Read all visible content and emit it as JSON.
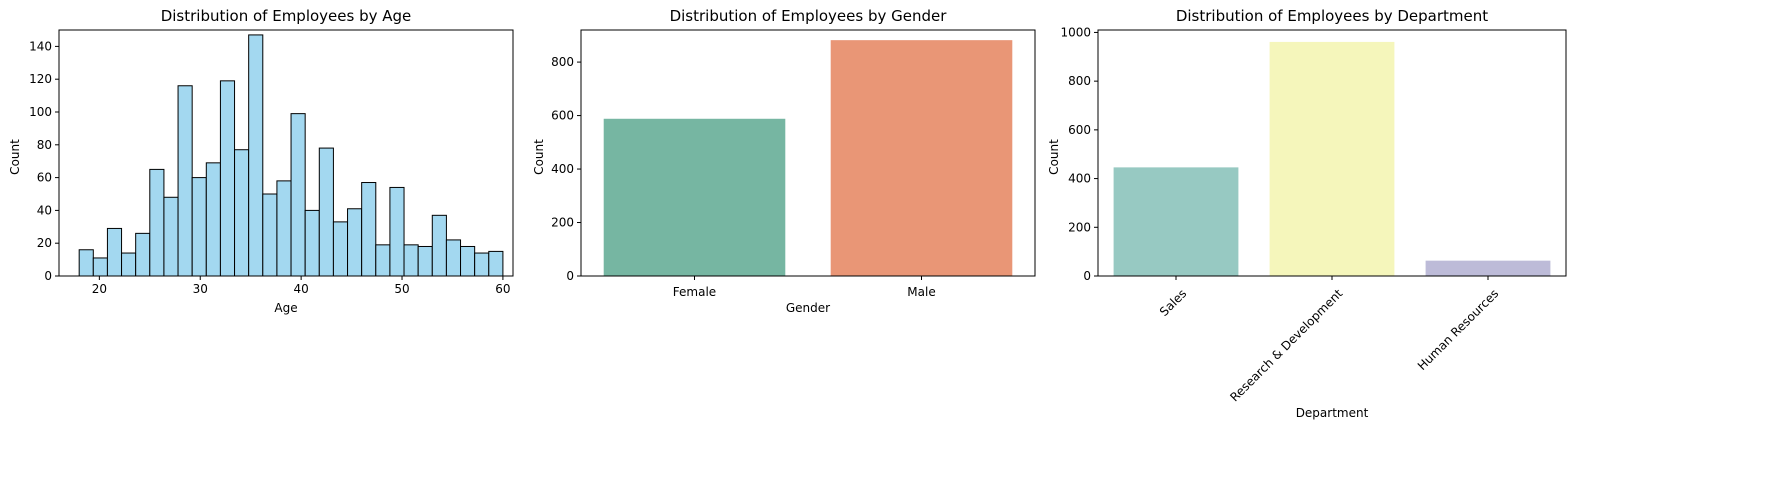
{
  "chart_data": [
    {
      "type": "bar",
      "subtype": "histogram",
      "title": "Distribution of Employees by Age",
      "xlabel": "Age",
      "ylabel": "Count",
      "xlim": [
        16,
        61
      ],
      "ylim": [
        0,
        150
      ],
      "xticks": [
        20,
        30,
        40,
        50,
        60
      ],
      "yticks": [
        0,
        20,
        40,
        60,
        80,
        100,
        120,
        140
      ],
      "bin_start": 18,
      "bin_width": 1.4,
      "values": [
        16,
        11,
        29,
        14,
        26,
        65,
        48,
        116,
        60,
        69,
        119,
        77,
        147,
        50,
        58,
        99,
        40,
        78,
        33,
        41,
        57,
        19,
        54,
        19,
        18,
        37,
        22,
        18,
        14,
        15
      ],
      "color": "#a3d8f0",
      "edge_color": "#000000",
      "grid": false
    },
    {
      "type": "bar",
      "title": "Distribution of Employees by Gender",
      "xlabel": "Gender",
      "ylabel": "Count",
      "categories": [
        "Female",
        "Male"
      ],
      "values": [
        588,
        882
      ],
      "colors": [
        "#76b6a2",
        "#e99676"
      ],
      "ylim": [
        0,
        920
      ],
      "yticks": [
        0,
        200,
        400,
        600,
        800
      ],
      "grid": false
    },
    {
      "type": "bar",
      "title": "Distribution of Employees by Department",
      "xlabel": "Department",
      "ylabel": "Count",
      "categories": [
        "Sales",
        "Research & Development",
        "Human Resources"
      ],
      "values": [
        446,
        961,
        63
      ],
      "colors": [
        "#97c9c2",
        "#f5f6bb",
        "#bdbbd8"
      ],
      "ylim": [
        0,
        1010
      ],
      "yticks": [
        0,
        200,
        400,
        600,
        800,
        1000
      ],
      "tick_rotation": 45,
      "grid": false
    }
  ]
}
